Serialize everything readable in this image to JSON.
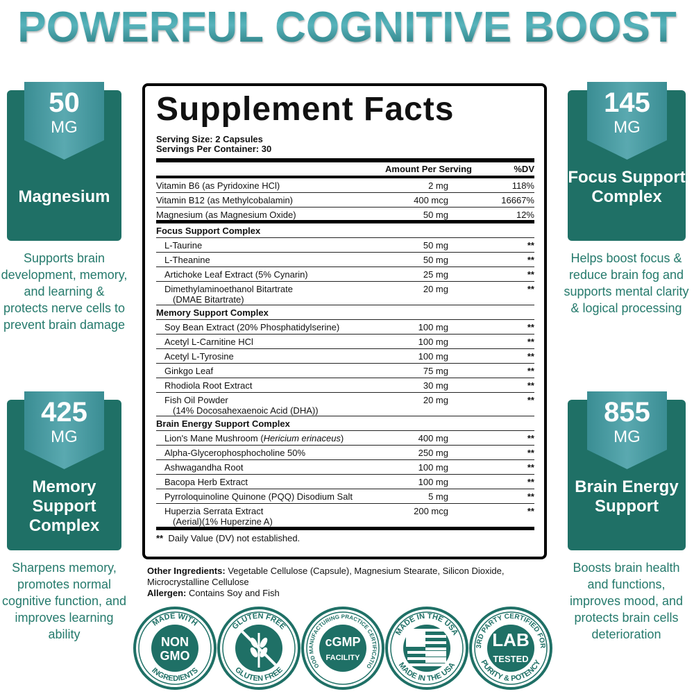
{
  "title": "POWERFUL COGNITIVE BOOST",
  "cards": [
    {
      "amount": "50",
      "unit": "MG",
      "name": "Magnesium",
      "desc": "Supports brain development, memory, and learning & protects nerve cells to prevent brain damage"
    },
    {
      "amount": "425",
      "unit": "MG",
      "name": "Memory Support Complex",
      "desc": "Sharpens memory, promotes normal cognitive function, and improves learning ability"
    },
    {
      "amount": "145",
      "unit": "MG",
      "name": "Focus Support Complex",
      "desc": "Helps boost focus & reduce brain fog and supports mental clarity & logical processing"
    },
    {
      "amount": "855",
      "unit": "MG",
      "name": "Brain Energy Support",
      "desc": "Boosts brain health and functions, improves mood, and protects brain cells deterioration"
    }
  ],
  "facts": {
    "title": "Supplement Facts",
    "serving_size": "Serving Size: 2 Capsules",
    "servings_per_container": "Servings Per Container: 30",
    "col_amount": "Amount Per Serving",
    "col_dv": "%DV",
    "rows": [
      {
        "type": "item",
        "name": "Vitamin B6 (as Pyridoxine HCl)",
        "amount": "2 mg",
        "dv": "118%"
      },
      {
        "type": "item",
        "name": "Vitamin B12 (as Methylcobalamin)",
        "amount": "400 mcg",
        "dv": "16667%"
      },
      {
        "type": "item",
        "name": "Magnesium (as Magnesium Oxide)",
        "amount": "50 mg",
        "dv": "12%",
        "thick": true
      },
      {
        "type": "section",
        "name": "Focus Support Complex"
      },
      {
        "type": "sub",
        "name": "L-Taurine",
        "amount": "50 mg",
        "dv": "**"
      },
      {
        "type": "sub",
        "name": "L-Theanine",
        "amount": "50 mg",
        "dv": "**"
      },
      {
        "type": "sub",
        "name": "Artichoke Leaf Extract (5% Cynarin)",
        "amount": "25 mg",
        "dv": "**"
      },
      {
        "type": "sub",
        "name": "Dimethylaminoethanol Bitartrate",
        "name2": "(DMAE Bitartrate)",
        "amount": "20 mg",
        "dv": "**"
      },
      {
        "type": "section",
        "name": "Memory Support Complex"
      },
      {
        "type": "sub",
        "name": "Soy Bean Extract (20% Phosphatidylserine)",
        "amount": "100 mg",
        "dv": "**"
      },
      {
        "type": "sub",
        "name": "Acetyl L-Carnitine HCl",
        "amount": "100 mg",
        "dv": "**"
      },
      {
        "type": "sub",
        "name": "Acetyl L-Tyrosine",
        "amount": "100 mg",
        "dv": "**"
      },
      {
        "type": "sub",
        "name": "Ginkgo Leaf",
        "amount": "75 mg",
        "dv": "**"
      },
      {
        "type": "sub",
        "name": "Rhodiola Root Extract",
        "amount": "30 mg",
        "dv": "**"
      },
      {
        "type": "sub",
        "name": "Fish Oil Powder",
        "name2": "(14% Docosahexaenoic Acid (DHA))",
        "amount": "20 mg",
        "dv": "**"
      },
      {
        "type": "section",
        "name": "Brain Energy Support Complex"
      },
      {
        "type": "sub",
        "name": "Lion's Mane Mushroom (",
        "italic": "Hericium erinaceus",
        "after": ")",
        "amount": "400 mg",
        "dv": "**"
      },
      {
        "type": "sub",
        "name": "Alpha-Glycerophosphocholine 50%",
        "amount": "250 mg",
        "dv": "**"
      },
      {
        "type": "sub",
        "name": "Ashwagandha Root",
        "amount": "100 mg",
        "dv": "**"
      },
      {
        "type": "sub",
        "name": "Bacopa Herb Extract",
        "amount": "100 mg",
        "dv": "**"
      },
      {
        "type": "sub",
        "name": "Pyrroloquinoline Quinone (PQQ) Disodium Salt",
        "amount": "5 mg",
        "dv": "**"
      },
      {
        "type": "sub",
        "name": "Huperzia Serrata Extract",
        "name2": "(Aerial)(1% Huperzine A)",
        "amount": "200 mcg",
        "dv": "**",
        "thick": true
      }
    ],
    "footnote_mark": "**",
    "footnote": "Daily Value (DV) not established."
  },
  "other": {
    "label": "Other Ingredients:",
    "value": "Vegetable Cellulose (Capsule), Magnesium Stearate, Silicon Dioxide, Microcrystalline Cellulose",
    "allergen_label": "Allergen:",
    "allergen_value": "Contains Soy and Fish"
  },
  "badges": [
    {
      "top": "MADE WITH",
      "center1": "NON",
      "center2": "GMO",
      "bottom": "INGREDIENTS"
    },
    {
      "top": "GLUTEN FREE",
      "center1": "",
      "center2": "",
      "bottom": "GLUTEN FREE"
    },
    {
      "top": "GOOD MANUFACTURING PRACTICE CERTIFICATION",
      "center1": "cGMP",
      "center2": "FACILITY",
      "bottom": ""
    },
    {
      "top": "MADE IN THE USA",
      "center1": "",
      "center2": "",
      "bottom": "MADE IN THE USA"
    },
    {
      "top": "3RD PARTY CERTIFIED FOR",
      "center1": "LAB",
      "center2": "TESTED",
      "bottom": "PURITY & POTENCY"
    }
  ],
  "colors": {
    "teal_dark": "#1f7066",
    "teal_light": "#5aa9b0",
    "text_teal": "#257a6c"
  }
}
